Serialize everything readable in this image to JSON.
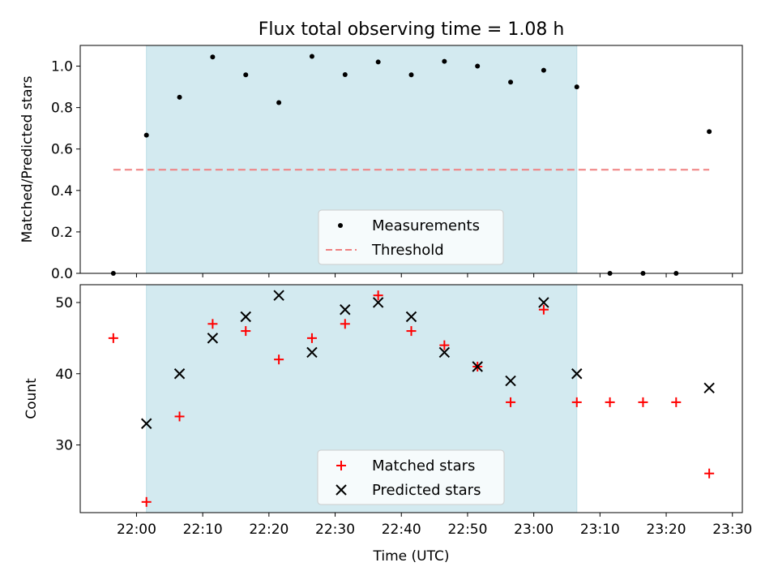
{
  "chart_data": [
    {
      "type": "scatter",
      "title": "Flux total observing time = 1.08 h",
      "ylabel": "Matched/Predicted stars",
      "ylim": [
        0,
        1.1
      ],
      "yticks": [
        0.0,
        0.2,
        0.4,
        0.6,
        0.8,
        1.0
      ],
      "ytick_labels": [
        "0.0",
        "0.2",
        "0.4",
        "0.6",
        "0.8",
        "1.0"
      ],
      "shaded_span": [
        "22:01:30",
        "23:06:30"
      ],
      "shaded_color": "#d3eaf0",
      "legend_position": "lower center",
      "series": [
        {
          "name": "Measurements",
          "marker": "dot",
          "color": "#000000",
          "x": [
            "21:56:30",
            "22:01:30",
            "22:06:30",
            "22:11:30",
            "22:16:30",
            "22:21:30",
            "22:26:30",
            "22:31:30",
            "22:36:30",
            "22:41:30",
            "22:46:30",
            "22:51:30",
            "22:56:30",
            "23:01:30",
            "23:06:30",
            "23:11:30",
            "23:16:30",
            "23:21:30",
            "23:26:30"
          ],
          "y": [
            0.0,
            0.667,
            0.85,
            1.044,
            0.958,
            0.824,
            1.047,
            0.959,
            1.02,
            0.958,
            1.023,
            1.0,
            0.923,
            0.98,
            0.9,
            0.0,
            0.0,
            0.0,
            0.684
          ]
        },
        {
          "name": "Threshold",
          "marker": "dashed-line",
          "color": "#f08080",
          "x": [
            "21:56:30",
            "23:26:30"
          ],
          "y": [
            0.5,
            0.5
          ]
        }
      ]
    },
    {
      "type": "scatter",
      "xlabel": "Time (UTC)",
      "ylabel": "Count",
      "ylim": [
        20.5,
        52.5
      ],
      "yticks": [
        30,
        40,
        50
      ],
      "ytick_labels": [
        "30",
        "40",
        "50"
      ],
      "xlim": [
        "21:51:30",
        "23:31:30"
      ],
      "xticks": [
        "22:00",
        "22:10",
        "22:20",
        "22:30",
        "22:40",
        "22:50",
        "23:00",
        "23:10",
        "23:20",
        "23:30"
      ],
      "shaded_span": [
        "22:01:30",
        "23:06:30"
      ],
      "shaded_color": "#d3eaf0",
      "legend_position": "lower center",
      "series": [
        {
          "name": "Matched stars",
          "marker": "plus",
          "color": "#ff0000",
          "x": [
            "21:56:30",
            "22:01:30",
            "22:06:30",
            "22:11:30",
            "22:16:30",
            "22:21:30",
            "22:26:30",
            "22:31:30",
            "22:36:30",
            "22:41:30",
            "22:46:30",
            "22:51:30",
            "22:56:30",
            "23:01:30",
            "23:06:30",
            "23:11:30",
            "23:16:30",
            "23:21:30",
            "23:26:30"
          ],
          "y": [
            45,
            22,
            34,
            47,
            46,
            42,
            45,
            47,
            51,
            46,
            44,
            41,
            36,
            49,
            36,
            36,
            36,
            36,
            26
          ]
        },
        {
          "name": "Predicted stars",
          "marker": "x",
          "color": "#000000",
          "x": [
            "22:01:30",
            "22:06:30",
            "22:11:30",
            "22:16:30",
            "22:21:30",
            "22:26:30",
            "22:31:30",
            "22:36:30",
            "22:41:30",
            "22:46:30",
            "22:51:30",
            "22:56:30",
            "23:01:30",
            "23:06:30",
            "23:26:30"
          ],
          "y": [
            33,
            40,
            45,
            48,
            51,
            43,
            49,
            50,
            48,
            43,
            41,
            39,
            50,
            40,
            38
          ]
        }
      ]
    }
  ]
}
